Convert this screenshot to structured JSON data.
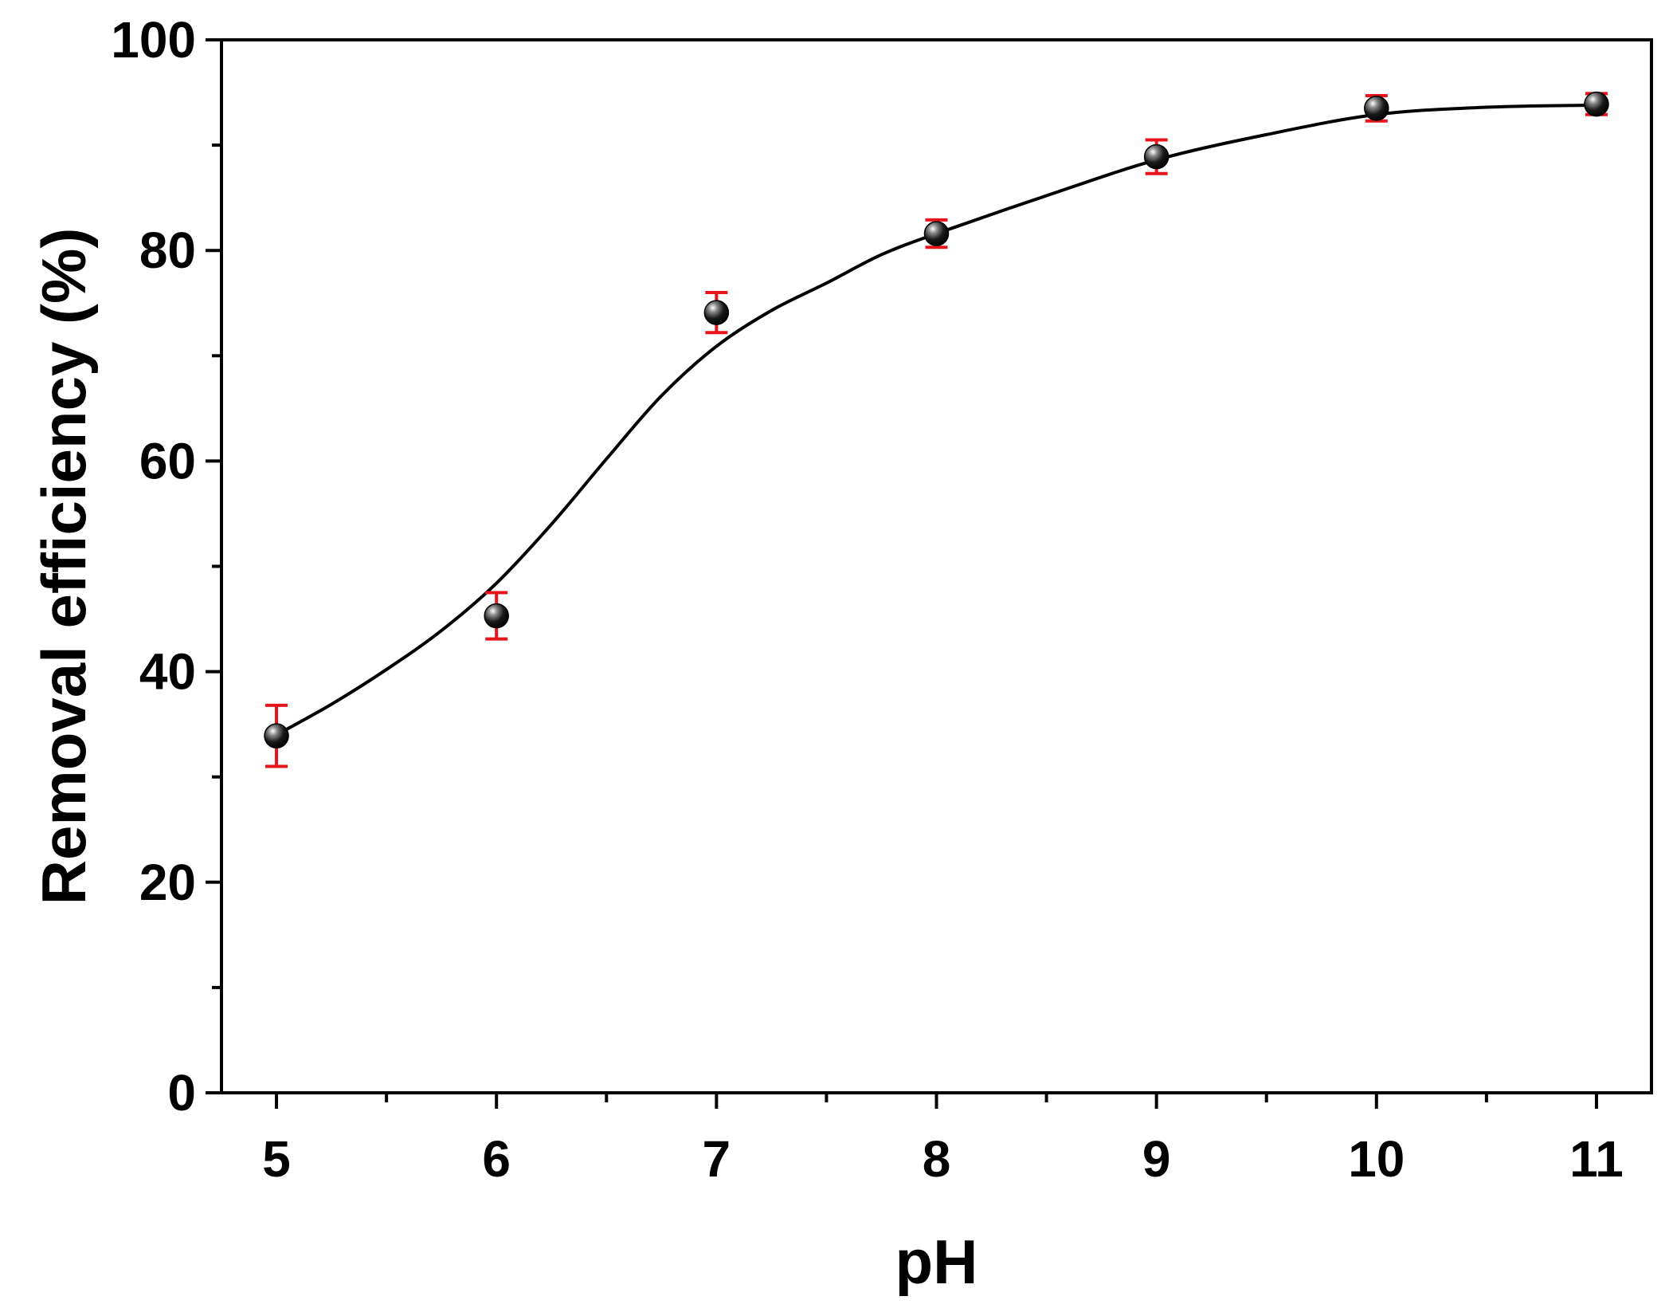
{
  "chart_data": {
    "type": "scatter",
    "title": "",
    "xlabel": "pH",
    "ylabel": "Removal efficiency (%)",
    "xlim": [
      4.75,
      11.25
    ],
    "ylim": [
      0,
      100
    ],
    "x_ticks": [
      5,
      6,
      7,
      8,
      9,
      10,
      11
    ],
    "x_tick_labels": [
      "5",
      "6",
      "7",
      "8",
      "9",
      "10",
      "11"
    ],
    "y_ticks": [
      0,
      20,
      40,
      60,
      80,
      100
    ],
    "y_tick_labels": [
      "0",
      "20",
      "40",
      "60",
      "80",
      "100"
    ],
    "grid": false,
    "legend": "none",
    "series": [
      {
        "x": [
          5,
          6,
          7,
          8,
          9,
          10,
          11
        ],
        "y": [
          33.9,
          45.3,
          74.1,
          81.6,
          88.9,
          93.5,
          93.9
        ],
        "err": [
          2.9,
          2.2,
          1.9,
          1.3,
          1.6,
          1.2,
          1.0
        ],
        "marker_color": "#000000",
        "error_bar_color": "#e8141c"
      }
    ],
    "fit_curve": {
      "x": [
        5,
        5.25,
        5.5,
        5.75,
        6,
        6.25,
        6.5,
        6.75,
        7,
        7.25,
        7.5,
        7.75,
        8,
        8.5,
        9,
        9.5,
        10,
        10.5,
        11
      ],
      "y": [
        34.0,
        36.9,
        40.2,
        43.9,
        48.4,
        54.0,
        60.2,
        66.2,
        70.9,
        74.3,
        76.9,
        79.6,
        81.6,
        85.2,
        88.6,
        91.0,
        92.9,
        93.6,
        93.8
      ],
      "color": "#000000"
    }
  }
}
